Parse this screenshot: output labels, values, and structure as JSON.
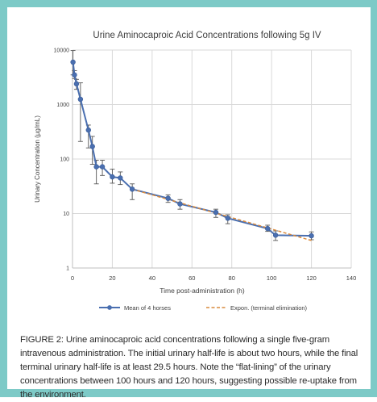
{
  "chart_data": {
    "type": "line",
    "title": "Urine Aminocaproic Acid Concentrations following 5g IV",
    "xlabel": "Time post-administration (h)",
    "ylabel": "Urinary Concentration (µg/mL)",
    "xlim": [
      0,
      140
    ],
    "ylim": [
      1,
      10000
    ],
    "yscale": "log",
    "grid": true,
    "legend_position": "bottom",
    "x_ticks": [
      "0",
      "20",
      "40",
      "60",
      "80",
      "100",
      "120",
      "140"
    ],
    "y_ticks": [
      "1",
      "10",
      "100",
      "1000",
      "10000"
    ],
    "series": [
      {
        "name": "Mean of 4 horses",
        "color": "#4a6fb0",
        "style": "solid-markers",
        "points": [
          {
            "x": 0.25,
            "y": 6000,
            "lo": 3500,
            "hi": 9800
          },
          {
            "x": 1,
            "y": 3500,
            "lo": 3000,
            "hi": 4200
          },
          {
            "x": 2,
            "y": 2400,
            "lo": 1900,
            "hi": 2900
          },
          {
            "x": 4,
            "y": 1250,
            "lo": 210,
            "hi": 2500
          },
          {
            "x": 8,
            "y": 340,
            "lo": 160,
            "hi": 420
          },
          {
            "x": 10,
            "y": 170,
            "lo": 80,
            "hi": 260
          },
          {
            "x": 12,
            "y": 72,
            "lo": 35,
            "hi": 95
          },
          {
            "x": 15,
            "y": 72,
            "lo": 50,
            "hi": 95
          },
          {
            "x": 20,
            "y": 47,
            "lo": 36,
            "hi": 65
          },
          {
            "x": 24,
            "y": 45,
            "lo": 34,
            "hi": 58
          },
          {
            "x": 30,
            "y": 28,
            "lo": 18,
            "hi": 35
          },
          {
            "x": 48,
            "y": 19,
            "lo": 16,
            "hi": 22
          },
          {
            "x": 54,
            "y": 15,
            "lo": 12,
            "hi": 18
          },
          {
            "x": 72,
            "y": 10.5,
            "lo": 8.5,
            "hi": 12
          },
          {
            "x": 78,
            "y": 8.2,
            "lo": 6.5,
            "hi": 9.5
          },
          {
            "x": 98,
            "y": 5.3,
            "lo": 4.7,
            "hi": 6.1
          },
          {
            "x": 102,
            "y": 4.0,
            "lo": 3.2,
            "hi": 4.8
          },
          {
            "x": 120,
            "y": 3.9,
            "lo": 3.3,
            "hi": 4.6
          }
        ]
      },
      {
        "name": "Expon. (terminal elimination)",
        "color": "#d98a3d",
        "style": "dashed",
        "points": [
          {
            "x": 30,
            "y": 28
          },
          {
            "x": 120,
            "y": 3.2
          }
        ]
      }
    ]
  },
  "caption": "FIGURE 2: Urine aminocaproic acid concentrations following a single five-gram intravenous administration. The initial urinary half-life is about two hours, while the final terminal urinary half-life is at least 29.5 hours. Note the “flat-lining” of the urinary concentrations between 100 hours and 120 hours, suggesting possible re-uptake from the environment."
}
